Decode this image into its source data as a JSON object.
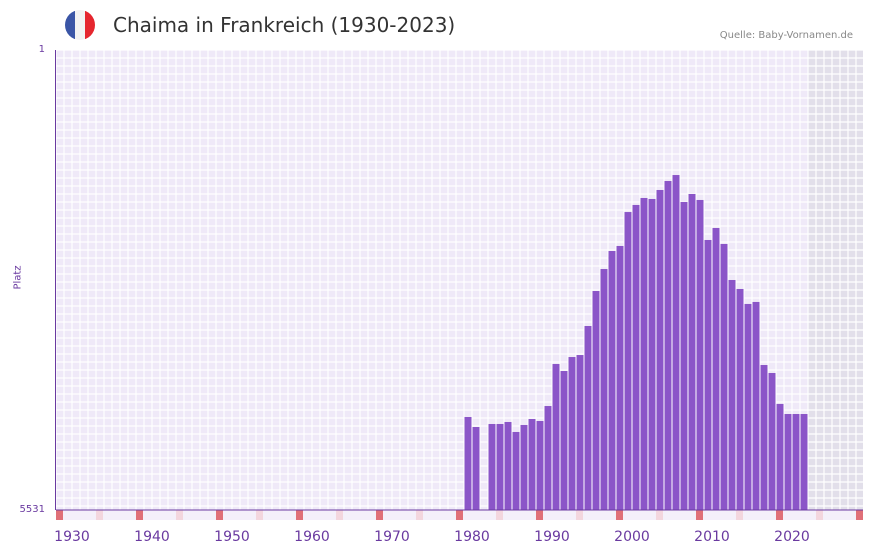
{
  "title": "Chaima in Frankreich (1930-2023)",
  "source": "Quelle: Baby-Vornamen.de",
  "colors": {
    "bar": "#8b55c8",
    "grid_bg": "#efe9f8",
    "future_bg": "#e2dfea",
    "axis": "#6a3aa0",
    "marker_red": "#e07078",
    "marker_pink": "#f3d6de"
  },
  "chart_data": {
    "type": "bar",
    "title": "Chaima in Frankreich (1930-2023)",
    "ylabel": "Platz",
    "ylim": [
      5531,
      1
    ],
    "y_ticks": [
      "1",
      "5531"
    ],
    "x_ticks": [
      "1930",
      "1940",
      "1950",
      "1960",
      "1970",
      "1980",
      "1990",
      "2000",
      "2010",
      "2020"
    ],
    "x_range": [
      1928,
      2028
    ],
    "years": [
      1979,
      1980,
      1982,
      1983,
      1984,
      1985,
      1986,
      1987,
      1988,
      1989,
      1990,
      1991,
      1992,
      1993,
      1994,
      1995,
      1996,
      1997,
      1998,
      1999,
      2000,
      2001,
      2002,
      2003,
      2004,
      2005,
      2006,
      2007,
      2008,
      2009,
      2010,
      2011,
      2012,
      2013,
      2014,
      2015,
      2016,
      2017,
      2018,
      2019,
      2020,
      2021
    ],
    "ranks": [
      4413,
      4533,
      4497,
      4497,
      4473,
      4593,
      4509,
      4437,
      4461,
      4281,
      3776,
      3860,
      3692,
      3668,
      3319,
      2898,
      2634,
      2417,
      2357,
      1949,
      1864,
      1780,
      1792,
      1684,
      1576,
      1504,
      1828,
      1732,
      1804,
      2285,
      2141,
      2333,
      2766,
      2874,
      3054,
      3030,
      3788,
      3884,
      4256,
      4377,
      4377,
      4377
    ]
  }
}
